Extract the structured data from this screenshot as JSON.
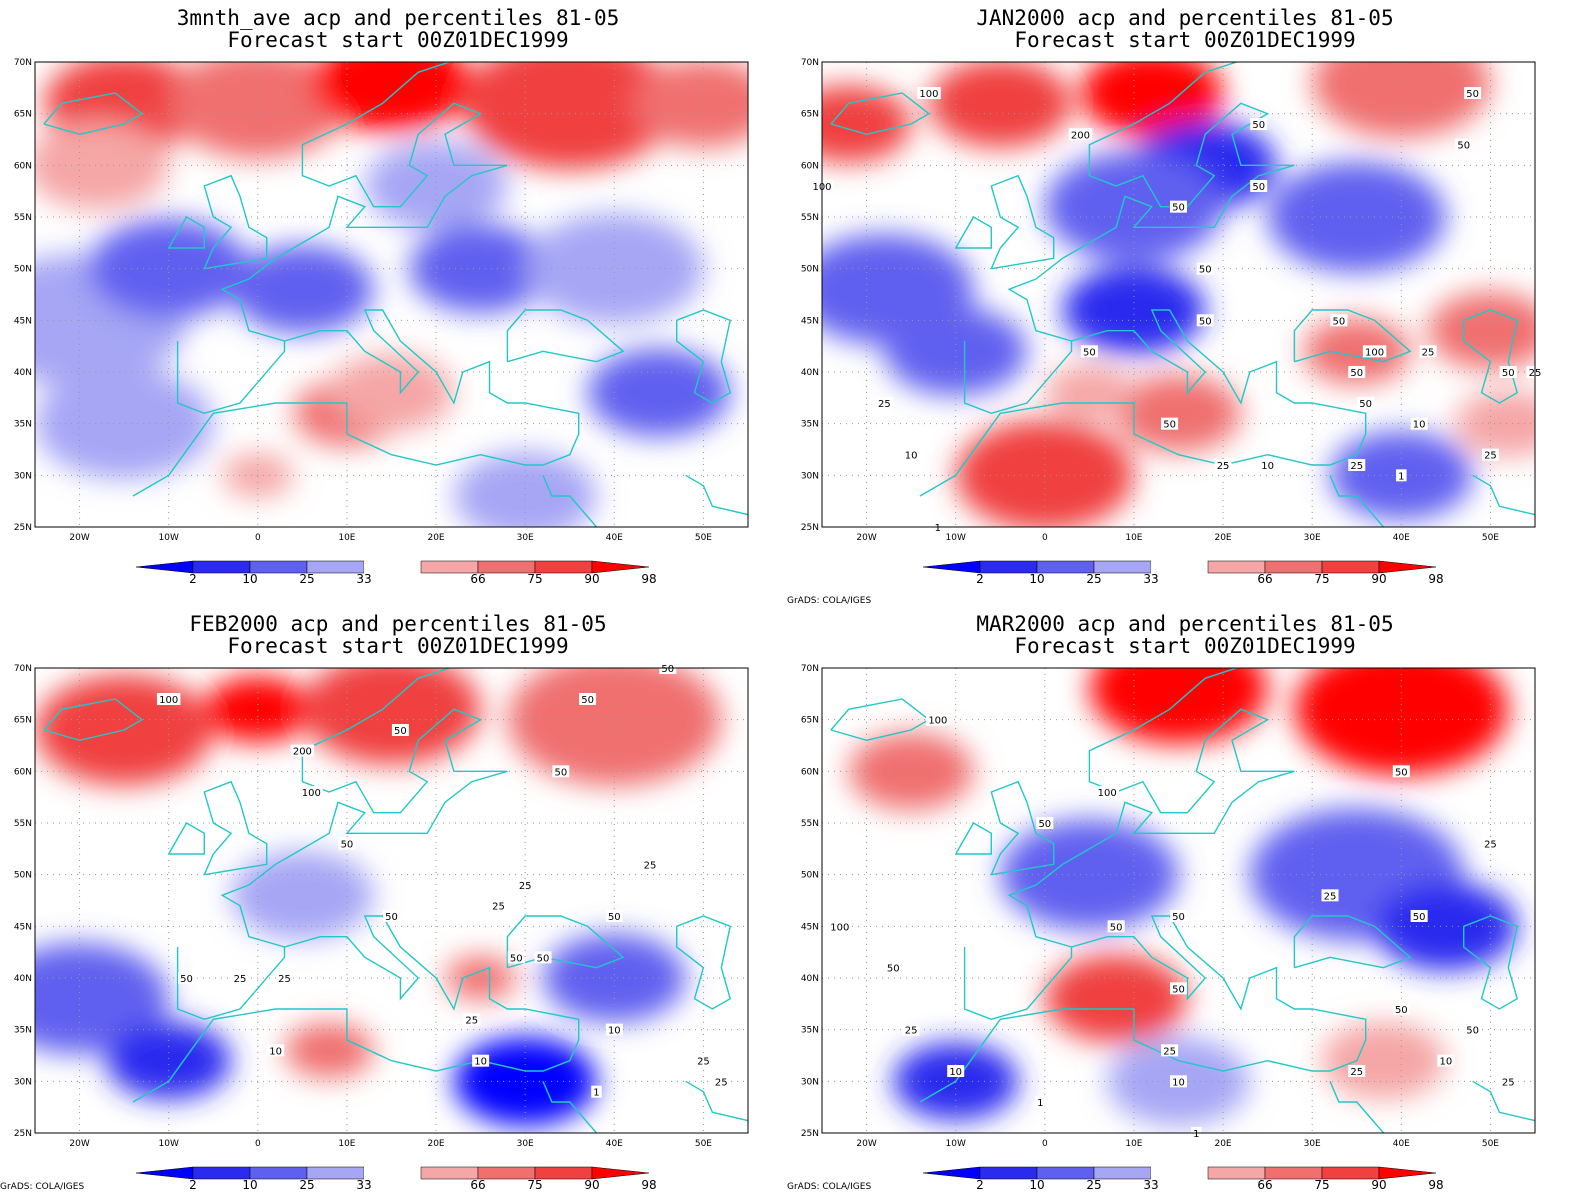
{
  "credit": "GrADS: COLA/IGES",
  "colors": {
    "p2": "#0000ff",
    "p10": "#2b2bef",
    "p25": "#6060f0",
    "p33": "#a6a6f5",
    "mid": "#ffffff",
    "p66": "#f5a6a6",
    "p75": "#f07070",
    "p90": "#f04040",
    "p98": "#ff0000",
    "coast": "#20c8c8",
    "contour": "#000000"
  },
  "chart_data": [
    {
      "type": "heatmap",
      "title": "3mnth_ave acp and percentiles 81-05",
      "subtitle": "Forecast start 00Z01DEC1999",
      "x_ticks": [
        "20W",
        "10W",
        "0",
        "10E",
        "20E",
        "30E",
        "40E",
        "50E"
      ],
      "y_ticks": [
        "25N",
        "30N",
        "35N",
        "40N",
        "45N",
        "50N",
        "55N",
        "60N",
        "65N",
        "70N"
      ],
      "xlim": [
        -25,
        55
      ],
      "ylim": [
        25,
        70
      ],
      "legend": {
        "breaks": [
          "2",
          "10",
          "25",
          "33",
          "66",
          "75",
          "90",
          "98"
        ]
      },
      "contour_labels": [],
      "fields": [
        {
          "lon": -15,
          "lat": 66,
          "class": "p90",
          "r": 9
        },
        {
          "lon": 0,
          "lat": 66,
          "class": "p75",
          "r": 10
        },
        {
          "lon": 15,
          "lat": 68,
          "class": "p98",
          "r": 9
        },
        {
          "lon": 35,
          "lat": 66,
          "class": "p90",
          "r": 12
        },
        {
          "lon": 50,
          "lat": 66,
          "class": "p75",
          "r": 8
        },
        {
          "lon": -18,
          "lat": 60,
          "class": "p66",
          "r": 8
        },
        {
          "lon": 20,
          "lat": 58,
          "class": "p33",
          "r": 8
        },
        {
          "lon": -20,
          "lat": 45,
          "class": "p33",
          "r": 12
        },
        {
          "lon": -10,
          "lat": 50,
          "class": "p25",
          "r": 9
        },
        {
          "lon": 5,
          "lat": 48,
          "class": "p25",
          "r": 8
        },
        {
          "lon": 25,
          "lat": 50,
          "class": "p25",
          "r": 8
        },
        {
          "lon": 40,
          "lat": 50,
          "class": "p33",
          "r": 10
        },
        {
          "lon": -15,
          "lat": 35,
          "class": "p33",
          "r": 10
        },
        {
          "lon": 45,
          "lat": 38,
          "class": "p25",
          "r": 8
        },
        {
          "lon": 30,
          "lat": 28,
          "class": "p33",
          "r": 8
        },
        {
          "lon": 10,
          "lat": 36,
          "class": "p75",
          "r": 6
        },
        {
          "lon": 15,
          "lat": 38,
          "class": "p66",
          "r": 7
        },
        {
          "lon": 0,
          "lat": 30,
          "class": "p66",
          "r": 4
        }
      ],
      "contours": []
    },
    {
      "type": "heatmap",
      "title": "JAN2000 acp and percentiles 81-05",
      "subtitle": "Forecast start 00Z01DEC1999",
      "x_ticks": [
        "20W",
        "10W",
        "0",
        "10E",
        "20E",
        "30E",
        "40E",
        "50E"
      ],
      "y_ticks": [
        "25N",
        "30N",
        "35N",
        "40N",
        "45N",
        "50N",
        "55N",
        "60N",
        "65N",
        "70N"
      ],
      "xlim": [
        -25,
        55
      ],
      "ylim": [
        25,
        70
      ],
      "legend": {
        "breaks": [
          "2",
          "10",
          "25",
          "33",
          "66",
          "75",
          "90",
          "98"
        ]
      },
      "contour_labels": [
        {
          "text": "100",
          "lon": -13,
          "lat": 67
        },
        {
          "text": "200",
          "lon": 4,
          "lat": 63
        },
        {
          "text": "100",
          "lon": -25,
          "lat": 58
        },
        {
          "text": "50",
          "lon": 24,
          "lat": 64
        },
        {
          "text": "50",
          "lon": 48,
          "lat": 67
        },
        {
          "text": "50",
          "lon": 47,
          "lat": 62
        },
        {
          "text": "50",
          "lon": 24,
          "lat": 58
        },
        {
          "text": "50",
          "lon": 15,
          "lat": 56
        },
        {
          "text": "50",
          "lon": 18,
          "lat": 50
        },
        {
          "text": "50",
          "lon": 18,
          "lat": 45
        },
        {
          "text": "50",
          "lon": 5,
          "lat": 42
        },
        {
          "text": "50",
          "lon": 33,
          "lat": 45
        },
        {
          "text": "100",
          "lon": 37,
          "lat": 42
        },
        {
          "text": "25",
          "lon": 43,
          "lat": 42
        },
        {
          "text": "50",
          "lon": 35,
          "lat": 40
        },
        {
          "text": "50",
          "lon": 52,
          "lat": 40
        },
        {
          "text": "25",
          "lon": 55,
          "lat": 40
        },
        {
          "text": "25",
          "lon": -18,
          "lat": 37
        },
        {
          "text": "50",
          "lon": 14,
          "lat": 35
        },
        {
          "text": "50",
          "lon": 36,
          "lat": 37
        },
        {
          "text": "10",
          "lon": 42,
          "lat": 35
        },
        {
          "text": "10",
          "lon": -15,
          "lat": 32
        },
        {
          "text": "25",
          "lon": 20,
          "lat": 31
        },
        {
          "text": "10",
          "lon": 25,
          "lat": 31
        },
        {
          "text": "25",
          "lon": 35,
          "lat": 31
        },
        {
          "text": "25",
          "lon": 50,
          "lat": 32
        },
        {
          "text": "1",
          "lon": 40,
          "lat": 30
        },
        {
          "text": "1",
          "lon": -12,
          "lat": 25
        }
      ],
      "fields": [
        {
          "lon": -22,
          "lat": 64,
          "class": "p90",
          "r": 7
        },
        {
          "lon": -5,
          "lat": 66,
          "class": "p90",
          "r": 8
        },
        {
          "lon": 12,
          "lat": 67,
          "class": "p98",
          "r": 8
        },
        {
          "lon": 40,
          "lat": 68,
          "class": "p75",
          "r": 10
        },
        {
          "lon": 18,
          "lat": 60,
          "class": "p10",
          "r": 8
        },
        {
          "lon": 10,
          "lat": 56,
          "class": "p25",
          "r": 10
        },
        {
          "lon": 35,
          "lat": 55,
          "class": "p25",
          "r": 10
        },
        {
          "lon": -18,
          "lat": 48,
          "class": "p25",
          "r": 10
        },
        {
          "lon": -10,
          "lat": 42,
          "class": "p25",
          "r": 8
        },
        {
          "lon": 10,
          "lat": 46,
          "class": "p10",
          "r": 8
        },
        {
          "lon": 35,
          "lat": 42,
          "class": "p75",
          "r": 6
        },
        {
          "lon": 50,
          "lat": 44,
          "class": "p75",
          "r": 7
        },
        {
          "lon": 0,
          "lat": 30,
          "class": "p90",
          "r": 10
        },
        {
          "lon": 15,
          "lat": 36,
          "class": "p75",
          "r": 7
        },
        {
          "lon": 5,
          "lat": 38,
          "class": "p66",
          "r": 5
        },
        {
          "lon": 40,
          "lat": 30,
          "class": "p25",
          "r": 8
        },
        {
          "lon": 52,
          "lat": 35,
          "class": "p66",
          "r": 6
        }
      ],
      "contours": []
    },
    {
      "type": "heatmap",
      "title": "FEB2000 acp and percentiles 81-05",
      "subtitle": "Forecast start 00Z01DEC1999",
      "x_ticks": [
        "20W",
        "10W",
        "0",
        "10E",
        "20E",
        "30E",
        "40E",
        "50E"
      ],
      "y_ticks": [
        "25N",
        "30N",
        "35N",
        "40N",
        "45N",
        "50N",
        "55N",
        "60N",
        "65N",
        "70N"
      ],
      "xlim": [
        -25,
        55
      ],
      "ylim": [
        25,
        70
      ],
      "legend": {
        "breaks": [
          "2",
          "10",
          "25",
          "33",
          "66",
          "75",
          "90",
          "98"
        ]
      },
      "contour_labels": [
        {
          "text": "100",
          "lon": -10,
          "lat": 67
        },
        {
          "text": "50",
          "lon": 46,
          "lat": 70
        },
        {
          "text": "50",
          "lon": 37,
          "lat": 67
        },
        {
          "text": "50",
          "lon": 16,
          "lat": 64
        },
        {
          "text": "200",
          "lon": 5,
          "lat": 62
        },
        {
          "text": "50",
          "lon": 34,
          "lat": 60
        },
        {
          "text": "100",
          "lon": 6,
          "lat": 58
        },
        {
          "text": "50",
          "lon": 10,
          "lat": 53
        },
        {
          "text": "25",
          "lon": 44,
          "lat": 51
        },
        {
          "text": "25",
          "lon": 30,
          "lat": 49
        },
        {
          "text": "25",
          "lon": 27,
          "lat": 47
        },
        {
          "text": "50",
          "lon": 15,
          "lat": 46
        },
        {
          "text": "50",
          "lon": 40,
          "lat": 46
        },
        {
          "text": "50",
          "lon": 29,
          "lat": 42
        },
        {
          "text": "50",
          "lon": 32,
          "lat": 42
        },
        {
          "text": "50",
          "lon": -8,
          "lat": 40
        },
        {
          "text": "25",
          "lon": -2,
          "lat": 40
        },
        {
          "text": "25",
          "lon": 3,
          "lat": 40
        },
        {
          "text": "25",
          "lon": 24,
          "lat": 36
        },
        {
          "text": "10",
          "lon": 2,
          "lat": 33
        },
        {
          "text": "10",
          "lon": 25,
          "lat": 32
        },
        {
          "text": "10",
          "lon": 40,
          "lat": 35
        },
        {
          "text": "25",
          "lon": 50,
          "lat": 32
        },
        {
          "text": "25",
          "lon": 52,
          "lat": 30
        },
        {
          "text": "1",
          "lon": 38,
          "lat": 29
        }
      ],
      "fields": [
        {
          "lon": -15,
          "lat": 64,
          "class": "p90",
          "r": 10
        },
        {
          "lon": 0,
          "lat": 66,
          "class": "p98",
          "r": 6
        },
        {
          "lon": 15,
          "lat": 66,
          "class": "p90",
          "r": 10
        },
        {
          "lon": 40,
          "lat": 65,
          "class": "p75",
          "r": 12
        },
        {
          "lon": -20,
          "lat": 38,
          "class": "p25",
          "r": 10
        },
        {
          "lon": -10,
          "lat": 32,
          "class": "p10",
          "r": 7
        },
        {
          "lon": 5,
          "lat": 48,
          "class": "p33",
          "r": 8
        },
        {
          "lon": 30,
          "lat": 30,
          "class": "p2",
          "r": 8
        },
        {
          "lon": 40,
          "lat": 40,
          "class": "p25",
          "r": 8
        },
        {
          "lon": 8,
          "lat": 33,
          "class": "p75",
          "r": 5
        },
        {
          "lon": 25,
          "lat": 40,
          "class": "p75",
          "r": 4
        }
      ],
      "contours": []
    },
    {
      "type": "heatmap",
      "title": "MAR2000 acp and percentiles 81-05",
      "subtitle": "Forecast start 00Z01DEC1999",
      "x_ticks": [
        "20W",
        "10W",
        "0",
        "10E",
        "20E",
        "30E",
        "40E",
        "50E"
      ],
      "y_ticks": [
        "25N",
        "30N",
        "35N",
        "40N",
        "45N",
        "50N",
        "55N",
        "60N",
        "65N",
        "70N"
      ],
      "xlim": [
        -25,
        55
      ],
      "ylim": [
        25,
        70
      ],
      "legend": {
        "breaks": [
          "2",
          "10",
          "25",
          "33",
          "66",
          "75",
          "90",
          "98"
        ]
      },
      "contour_labels": [
        {
          "text": "100",
          "lon": -12,
          "lat": 65
        },
        {
          "text": "100",
          "lon": 7,
          "lat": 58
        },
        {
          "text": "50",
          "lon": 40,
          "lat": 60
        },
        {
          "text": "50",
          "lon": 0,
          "lat": 55
        },
        {
          "text": "25",
          "lon": 50,
          "lat": 53
        },
        {
          "text": "25",
          "lon": 32,
          "lat": 48
        },
        {
          "text": "100",
          "lon": -23,
          "lat": 45
        },
        {
          "text": "50",
          "lon": 8,
          "lat": 45
        },
        {
          "text": "50",
          "lon": 15,
          "lat": 46
        },
        {
          "text": "50",
          "lon": 42,
          "lat": 46
        },
        {
          "text": "50",
          "lon": -17,
          "lat": 41
        },
        {
          "text": "50",
          "lon": 15,
          "lat": 39
        },
        {
          "text": "50",
          "lon": 40,
          "lat": 37
        },
        {
          "text": "25",
          "lon": -15,
          "lat": 35
        },
        {
          "text": "25",
          "lon": 14,
          "lat": 33
        },
        {
          "text": "50",
          "lon": 48,
          "lat": 35
        },
        {
          "text": "10",
          "lon": 45,
          "lat": 32
        },
        {
          "text": "25",
          "lon": 35,
          "lat": 31
        },
        {
          "text": "10",
          "lon": -10,
          "lat": 31
        },
        {
          "text": "10",
          "lon": 15,
          "lat": 30
        },
        {
          "text": "25",
          "lon": 52,
          "lat": 30
        },
        {
          "text": "1",
          "lon": -0.5,
          "lat": 28
        },
        {
          "text": "1",
          "lon": 17,
          "lat": 25
        }
      ],
      "fields": [
        {
          "lon": 15,
          "lat": 68,
          "class": "p98",
          "r": 10
        },
        {
          "lon": 40,
          "lat": 66,
          "class": "p98",
          "r": 12
        },
        {
          "lon": -15,
          "lat": 60,
          "class": "p75",
          "r": 7
        },
        {
          "lon": 5,
          "lat": 50,
          "class": "p25",
          "r": 10
        },
        {
          "lon": 35,
          "lat": 50,
          "class": "p25",
          "r": 12
        },
        {
          "lon": 45,
          "lat": 45,
          "class": "p10",
          "r": 8
        },
        {
          "lon": 8,
          "lat": 38,
          "class": "p90",
          "r": 8
        },
        {
          "lon": -10,
          "lat": 30,
          "class": "p10",
          "r": 7
        },
        {
          "lon": 38,
          "lat": 32,
          "class": "p66",
          "r": 7
        },
        {
          "lon": 15,
          "lat": 30,
          "class": "p33",
          "r": 8
        }
      ],
      "contours": []
    }
  ]
}
